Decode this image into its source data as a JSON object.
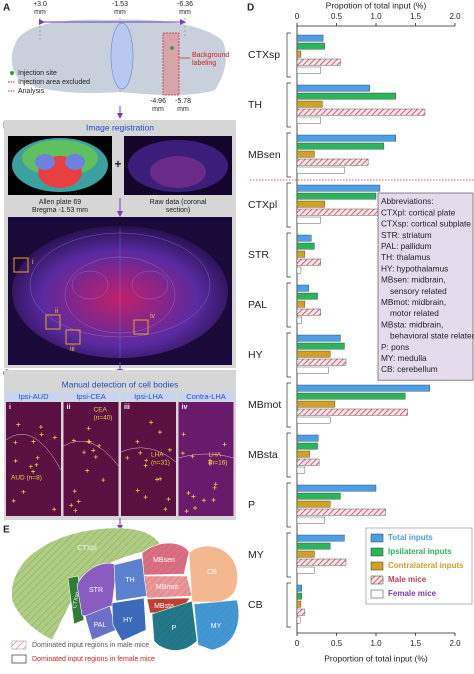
{
  "panel_a": {
    "label": "A",
    "top_marks": [
      [
        "+3.0",
        "mm"
      ],
      [
        "-1.53",
        "mm"
      ],
      [
        "-6.36",
        "mm"
      ]
    ],
    "bottom_marks": [
      [
        "-4.96",
        "mm"
      ],
      [
        "-5.78",
        "mm"
      ]
    ],
    "background": [
      "Background",
      "labeling"
    ],
    "legend": [
      "Injection site",
      "Injection area excluded",
      "Analysis"
    ]
  },
  "panel_b": {
    "label": "B",
    "title": "Image registration",
    "atlas_caption": [
      "Allen plate 69",
      "Bregma -1.53 mm"
    ],
    "plus": "+",
    "raw_caption": [
      "Raw data (coronal",
      "section)"
    ],
    "rois": [
      "i",
      "ii",
      "iii",
      "iv"
    ]
  },
  "panel_c": {
    "label": "C",
    "title": "Manual detection of cell bodies",
    "tiles": [
      {
        "numeral": "i",
        "header": "Ipsi-AUD",
        "note": [
          "AUD (n=8)"
        ]
      },
      {
        "numeral": "ii",
        "header": "Ipsi-CEA",
        "note": [
          "CEA",
          "(n=40)"
        ]
      },
      {
        "numeral": "iii",
        "header": "Ipsi-LHA",
        "note": [
          "LHA",
          "(n=31)"
        ]
      },
      {
        "numeral": "iv",
        "header": "Contra-LHA",
        "note": [
          "LHA",
          "(n=16)"
        ]
      }
    ]
  },
  "panel_e": {
    "label": "E",
    "regions": [
      "CTXpl",
      "CTXsp",
      "STR",
      "PAL",
      "TH",
      "HY",
      "MBsen",
      "MBmot",
      "MBsta",
      "P",
      "MY",
      "CB"
    ],
    "legend": [
      "Dominated input regions in male mice",
      "Dominated input regions in female mice"
    ]
  },
  "chart_data": {
    "type": "bar",
    "orientation": "horizontal",
    "panel_label": "D",
    "title": "Propotion of total input (%)",
    "xlabel": "Proportion of total input (%)",
    "categories": [
      "CTXsp",
      "TH",
      "MBsen",
      "CTXpl",
      "STR",
      "PAL",
      "HY",
      "MBmot",
      "MBsta",
      "P",
      "MY",
      "CB"
    ],
    "series": [
      {
        "name": "Total inputs",
        "color": "#4a9fe8",
        "values": [
          0.33,
          0.92,
          1.25,
          1.05,
          0.18,
          0.15,
          0.55,
          1.68,
          0.27,
          1.0,
          0.6,
          0.06
        ]
      },
      {
        "name": "Ipsilateral inputs",
        "color": "#2ab55a",
        "values": [
          0.35,
          1.25,
          1.1,
          1.0,
          0.22,
          0.26,
          0.6,
          1.37,
          0.26,
          0.55,
          0.42,
          0.06
        ]
      },
      {
        "name": "Contralateral inputs",
        "color": "#d4a020",
        "values": [
          0.05,
          0.32,
          0.22,
          0.35,
          0.1,
          0.1,
          0.42,
          0.48,
          0.16,
          0.42,
          0.22,
          0.05
        ]
      },
      {
        "name": "Male mice",
        "color": "#c0405a",
        "hatched": true,
        "values": [
          0.55,
          1.62,
          0.9,
          1.18,
          0.3,
          0.3,
          0.62,
          1.4,
          0.28,
          1.12,
          0.62,
          0.1
        ]
      },
      {
        "name": "Female mice",
        "color": "#ffffff",
        "values": [
          0.3,
          0.3,
          0.6,
          0.3,
          0.05,
          0.06,
          0.4,
          0.42,
          0.1,
          0.35,
          0.22,
          0.04
        ]
      }
    ],
    "xlim": [
      0,
      2
    ],
    "xticks": [
      0,
      0.5,
      {
        "value": 1,
        "label": "1.0"
      },
      1.5,
      {
        "value": 2,
        "label": "2.0"
      }
    ],
    "legend": "lower right",
    "abbreviations": [
      "Abbreviations:",
      "CTXpl: cortical plate",
      "CTXsp: cortical subplate",
      "STR: striatum",
      "PAL: pallidum",
      "TH: thalamus",
      "HY: hypothalamus",
      "MBsen: midbrain,",
      "sensory related",
      "MBmot: midbrain,",
      "motor related",
      "MBsta: midbrain,",
      "behavioral state related",
      "P: pons",
      "MY: medulla",
      "CB: cerebellum"
    ]
  }
}
